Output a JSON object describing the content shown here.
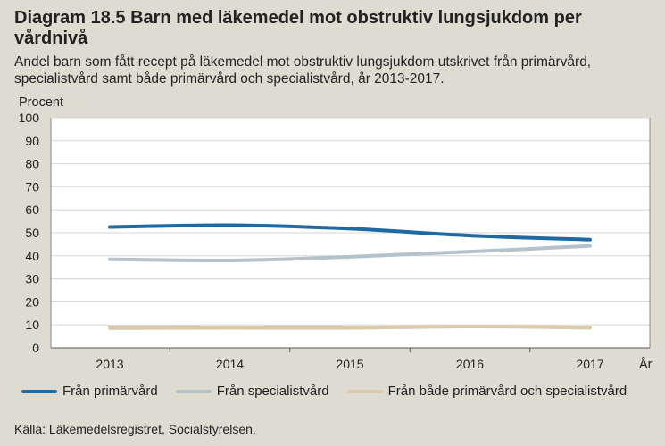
{
  "title": "Diagram 18.5 Barn med läkemedel mot obstruktiv lungsjukdom per vårdnivå",
  "subtitle": "Andel barn som fått recept på läkemedel mot obstruktiv lungsjukdom utskrivet från primärvård, specialistvård samt både primärvård och specialistvård, år 2013-2017.",
  "source": "Källa: Läkemedelsregistret, Socialstyrelsen.",
  "colors": {
    "background": "#dedbd1",
    "plot_background": "#ffffff"
  },
  "chart_data": {
    "type": "line",
    "ylabel": "Procent",
    "xlabel": "År",
    "x": [
      "2013",
      "2014",
      "2015",
      "2016",
      "2017"
    ],
    "ylim": [
      0,
      100
    ],
    "yticks": [
      0,
      10,
      20,
      30,
      40,
      50,
      60,
      70,
      80,
      90,
      100
    ],
    "grid": true,
    "legend_position": "bottom",
    "series": [
      {
        "name": "Från primärvård",
        "color": "#1f6aa3",
        "values": [
          52.5,
          53.3,
          51.8,
          48.8,
          47
        ]
      },
      {
        "name": "Från specialistvård",
        "color": "#b4c3cb",
        "values": [
          38.5,
          38,
          39.6,
          41.8,
          44.3
        ]
      },
      {
        "name": "Från både primärvård och specialistvård",
        "color": "#dbc9a9",
        "values": [
          8.6,
          8.7,
          8.7,
          9.3,
          8.8
        ]
      }
    ]
  }
}
